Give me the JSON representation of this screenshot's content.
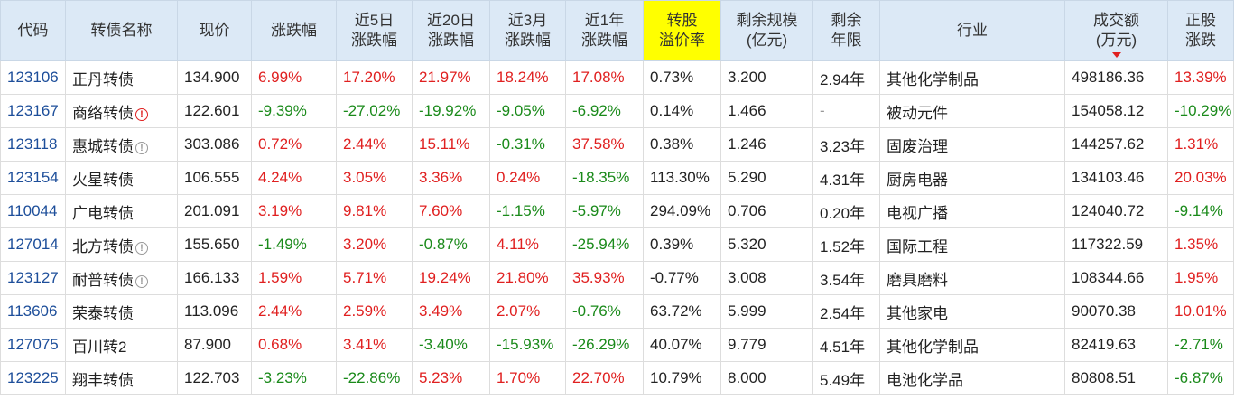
{
  "columns": [
    {
      "lines": [
        "代码"
      ]
    },
    {
      "lines": [
        "转债名称"
      ]
    },
    {
      "lines": [
        "现价"
      ]
    },
    {
      "lines": [
        "涨跌幅"
      ]
    },
    {
      "lines": [
        "近5日",
        "涨跌幅"
      ]
    },
    {
      "lines": [
        "近20日",
        "涨跌幅"
      ]
    },
    {
      "lines": [
        "近3月",
        "涨跌幅"
      ]
    },
    {
      "lines": [
        "近1年",
        "涨跌幅"
      ]
    },
    {
      "lines": [
        "转股",
        "溢价率"
      ]
    },
    {
      "lines": [
        "剩余规模",
        "(亿元)"
      ]
    },
    {
      "lines": [
        "剩余",
        "年限"
      ]
    },
    {
      "lines": [
        "行业"
      ]
    },
    {
      "lines": [
        "成交额",
        "(万元)"
      ]
    },
    {
      "lines": [
        "正股",
        "涨跌"
      ]
    }
  ],
  "colors": {
    "up": "#e02020",
    "down": "#1a8a1a",
    "header_bg": "#dce9f6",
    "highlight": "#ffff00",
    "code": "#1d4e9a"
  },
  "rows": [
    {
      "code": "123106",
      "name": "正丹转债",
      "flag": "",
      "price": "134.900",
      "chg": "6.99%",
      "chg5": "17.20%",
      "chg20": "21.97%",
      "chg3m": "18.24%",
      "chg1y": "17.08%",
      "premium": "0.73%",
      "scale": "3.200",
      "years": "2.94年",
      "industry": "其他化学制品",
      "volume": "498186.36",
      "stock_chg": "13.39%"
    },
    {
      "code": "123167",
      "name": "商络转债",
      "flag": "red",
      "price": "122.601",
      "chg": "-9.39%",
      "chg5": "-27.02%",
      "chg20": "-19.92%",
      "chg3m": "-9.05%",
      "chg1y": "-6.92%",
      "premium": "0.14%",
      "scale": "1.466",
      "years": "-",
      "industry": "被动元件",
      "volume": "154058.12",
      "stock_chg": "-10.29%"
    },
    {
      "code": "123118",
      "name": "惠城转债",
      "flag": "grey",
      "price": "303.086",
      "chg": "0.72%",
      "chg5": "2.44%",
      "chg20": "15.11%",
      "chg3m": "-0.31%",
      "chg1y": "37.58%",
      "premium": "0.38%",
      "scale": "1.246",
      "years": "3.23年",
      "industry": "固废治理",
      "volume": "144257.62",
      "stock_chg": "1.31%"
    },
    {
      "code": "123154",
      "name": "火星转债",
      "flag": "",
      "price": "106.555",
      "chg": "4.24%",
      "chg5": "3.05%",
      "chg20": "3.36%",
      "chg3m": "0.24%",
      "chg1y": "-18.35%",
      "premium": "113.30%",
      "scale": "5.290",
      "years": "4.31年",
      "industry": "厨房电器",
      "volume": "134103.46",
      "stock_chg": "20.03%"
    },
    {
      "code": "110044",
      "name": "广电转债",
      "flag": "",
      "price": "201.091",
      "chg": "3.19%",
      "chg5": "9.81%",
      "chg20": "7.60%",
      "chg3m": "-1.15%",
      "chg1y": "-5.97%",
      "premium": "294.09%",
      "scale": "0.706",
      "years": "0.20年",
      "industry": "电视广播",
      "volume": "124040.72",
      "stock_chg": "-9.14%"
    },
    {
      "code": "127014",
      "name": "北方转债",
      "flag": "grey",
      "price": "155.650",
      "chg": "-1.49%",
      "chg5": "3.20%",
      "chg20": "-0.87%",
      "chg3m": "4.11%",
      "chg1y": "-25.94%",
      "premium": "0.39%",
      "scale": "5.320",
      "years": "1.52年",
      "industry": "国际工程",
      "volume": "117322.59",
      "stock_chg": "1.35%"
    },
    {
      "code": "123127",
      "name": "耐普转债",
      "flag": "grey",
      "price": "166.133",
      "chg": "1.59%",
      "chg5": "5.71%",
      "chg20": "19.24%",
      "chg3m": "21.80%",
      "chg1y": "35.93%",
      "premium": "-0.77%",
      "scale": "3.008",
      "years": "3.54年",
      "industry": "磨具磨料",
      "volume": "108344.66",
      "stock_chg": "1.95%"
    },
    {
      "code": "113606",
      "name": "荣泰转债",
      "flag": "",
      "price": "113.096",
      "chg": "2.44%",
      "chg5": "2.59%",
      "chg20": "3.49%",
      "chg3m": "2.07%",
      "chg1y": "-0.76%",
      "premium": "63.72%",
      "scale": "5.999",
      "years": "2.54年",
      "industry": "其他家电",
      "volume": "90070.38",
      "stock_chg": "10.01%"
    },
    {
      "code": "127075",
      "name": "百川转2",
      "flag": "",
      "price": "87.900",
      "chg": "0.68%",
      "chg5": "3.41%",
      "chg20": "-3.40%",
      "chg3m": "-15.93%",
      "chg1y": "-26.29%",
      "premium": "40.07%",
      "scale": "9.779",
      "years": "4.51年",
      "industry": "其他化学制品",
      "volume": "82419.63",
      "stock_chg": "-2.71%"
    },
    {
      "code": "123225",
      "name": "翔丰转债",
      "flag": "",
      "price": "122.703",
      "chg": "-3.23%",
      "chg5": "-22.86%",
      "chg20": "5.23%",
      "chg3m": "1.70%",
      "chg1y": "22.70%",
      "premium": "10.79%",
      "scale": "8.000",
      "years": "5.49年",
      "industry": "电池化学品",
      "volume": "80808.51",
      "stock_chg": "-6.87%"
    }
  ]
}
